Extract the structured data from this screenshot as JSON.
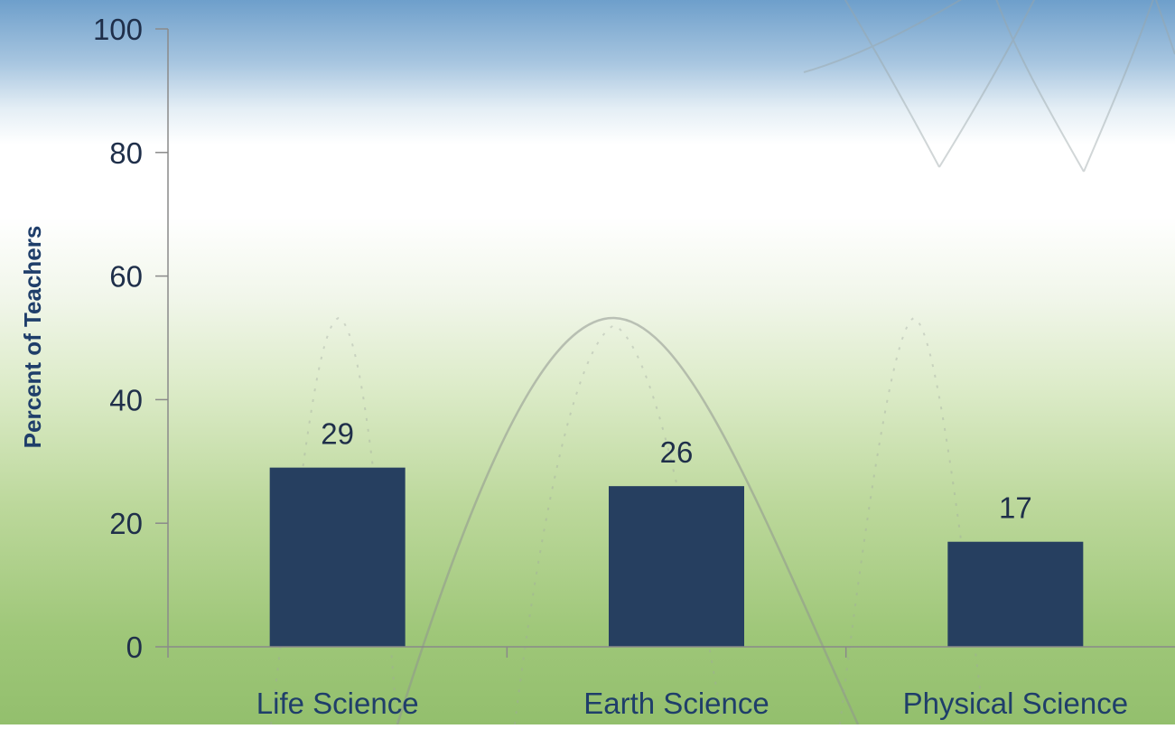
{
  "chart_data": {
    "type": "bar",
    "categories": [
      "Life Science",
      "Earth Science",
      "Physical Science"
    ],
    "values": [
      29,
      26,
      17
    ],
    "data_labels": [
      "29",
      "26",
      "17"
    ],
    "ylabel": "Percent of Teachers",
    "xlabel": "",
    "ylim": [
      0,
      100
    ],
    "yticks": [
      0,
      20,
      40,
      60,
      80,
      100
    ],
    "grid": false,
    "bar_color": "#263f60",
    "axis_color": "#8a8a8a"
  }
}
